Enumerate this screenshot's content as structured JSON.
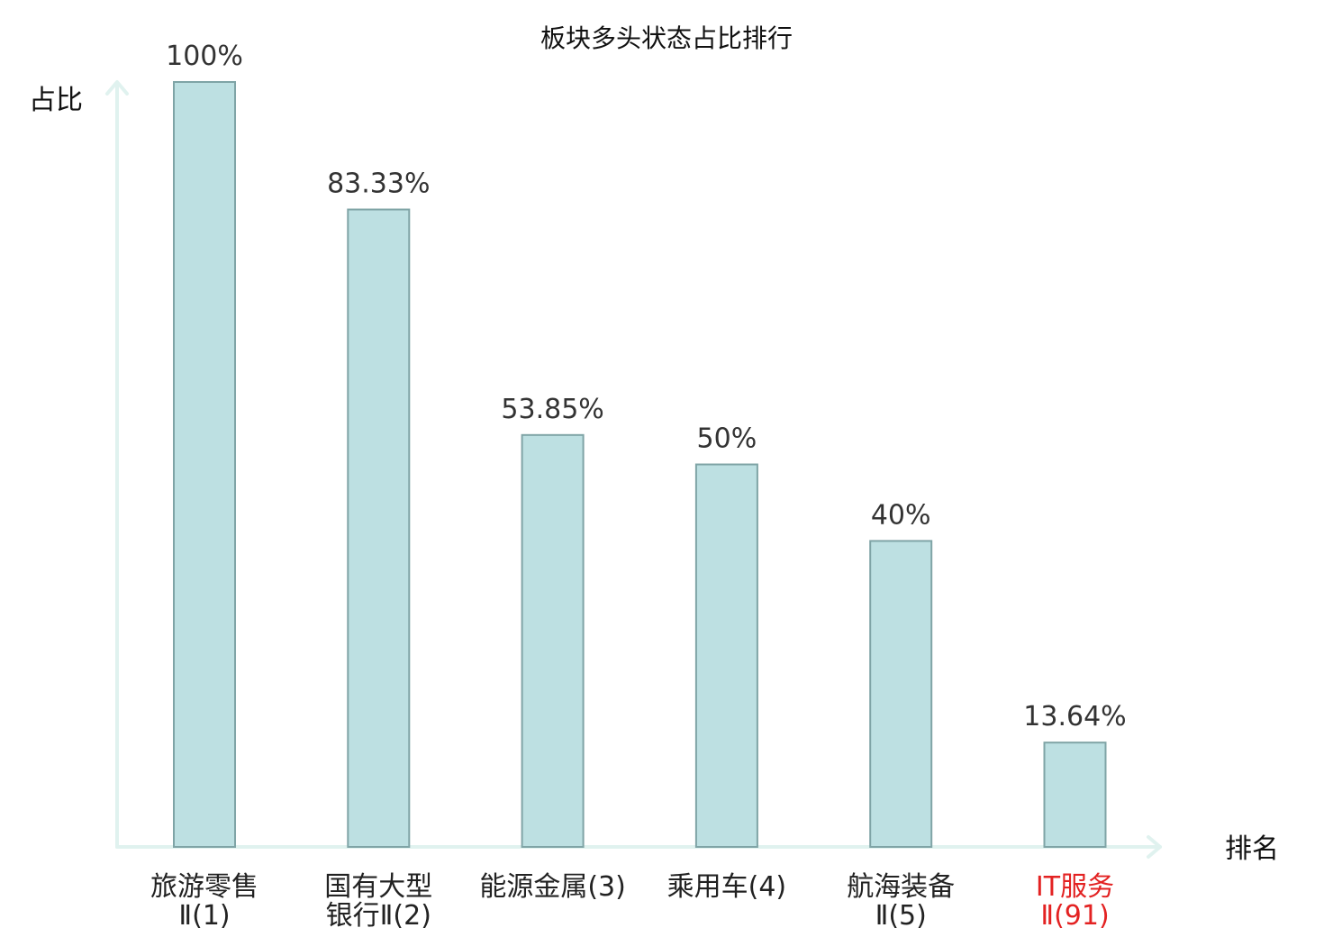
{
  "chart_data": {
    "type": "bar",
    "title": "板块多头状态占比排行",
    "xlabel": "排名",
    "ylabel": "占比",
    "categories": [
      [
        "旅游零售",
        "Ⅱ(1)"
      ],
      [
        "国有大型",
        "银行Ⅱ(2)"
      ],
      [
        "能源金属(3)"
      ],
      [
        "乘用车(4)"
      ],
      [
        "航海装备",
        "Ⅱ(5)"
      ],
      [
        "IT服务",
        "Ⅱ(91)"
      ]
    ],
    "values": [
      100,
      83.33,
      53.85,
      50,
      40,
      13.64
    ],
    "value_labels": [
      "100%",
      "83.33%",
      "53.85%",
      "50%",
      "40%",
      "13.64%"
    ],
    "highlight": [
      false,
      false,
      false,
      false,
      false,
      true
    ],
    "ylim": [
      0,
      100
    ],
    "grid": false,
    "legend": "none"
  },
  "colors": {
    "bar_fill": "#bde0e2",
    "bar_stroke": "#7fa4a6",
    "axis": "#e0f2ef",
    "label": "#222222",
    "highlight": "#e32222",
    "value_text": "#333333"
  }
}
